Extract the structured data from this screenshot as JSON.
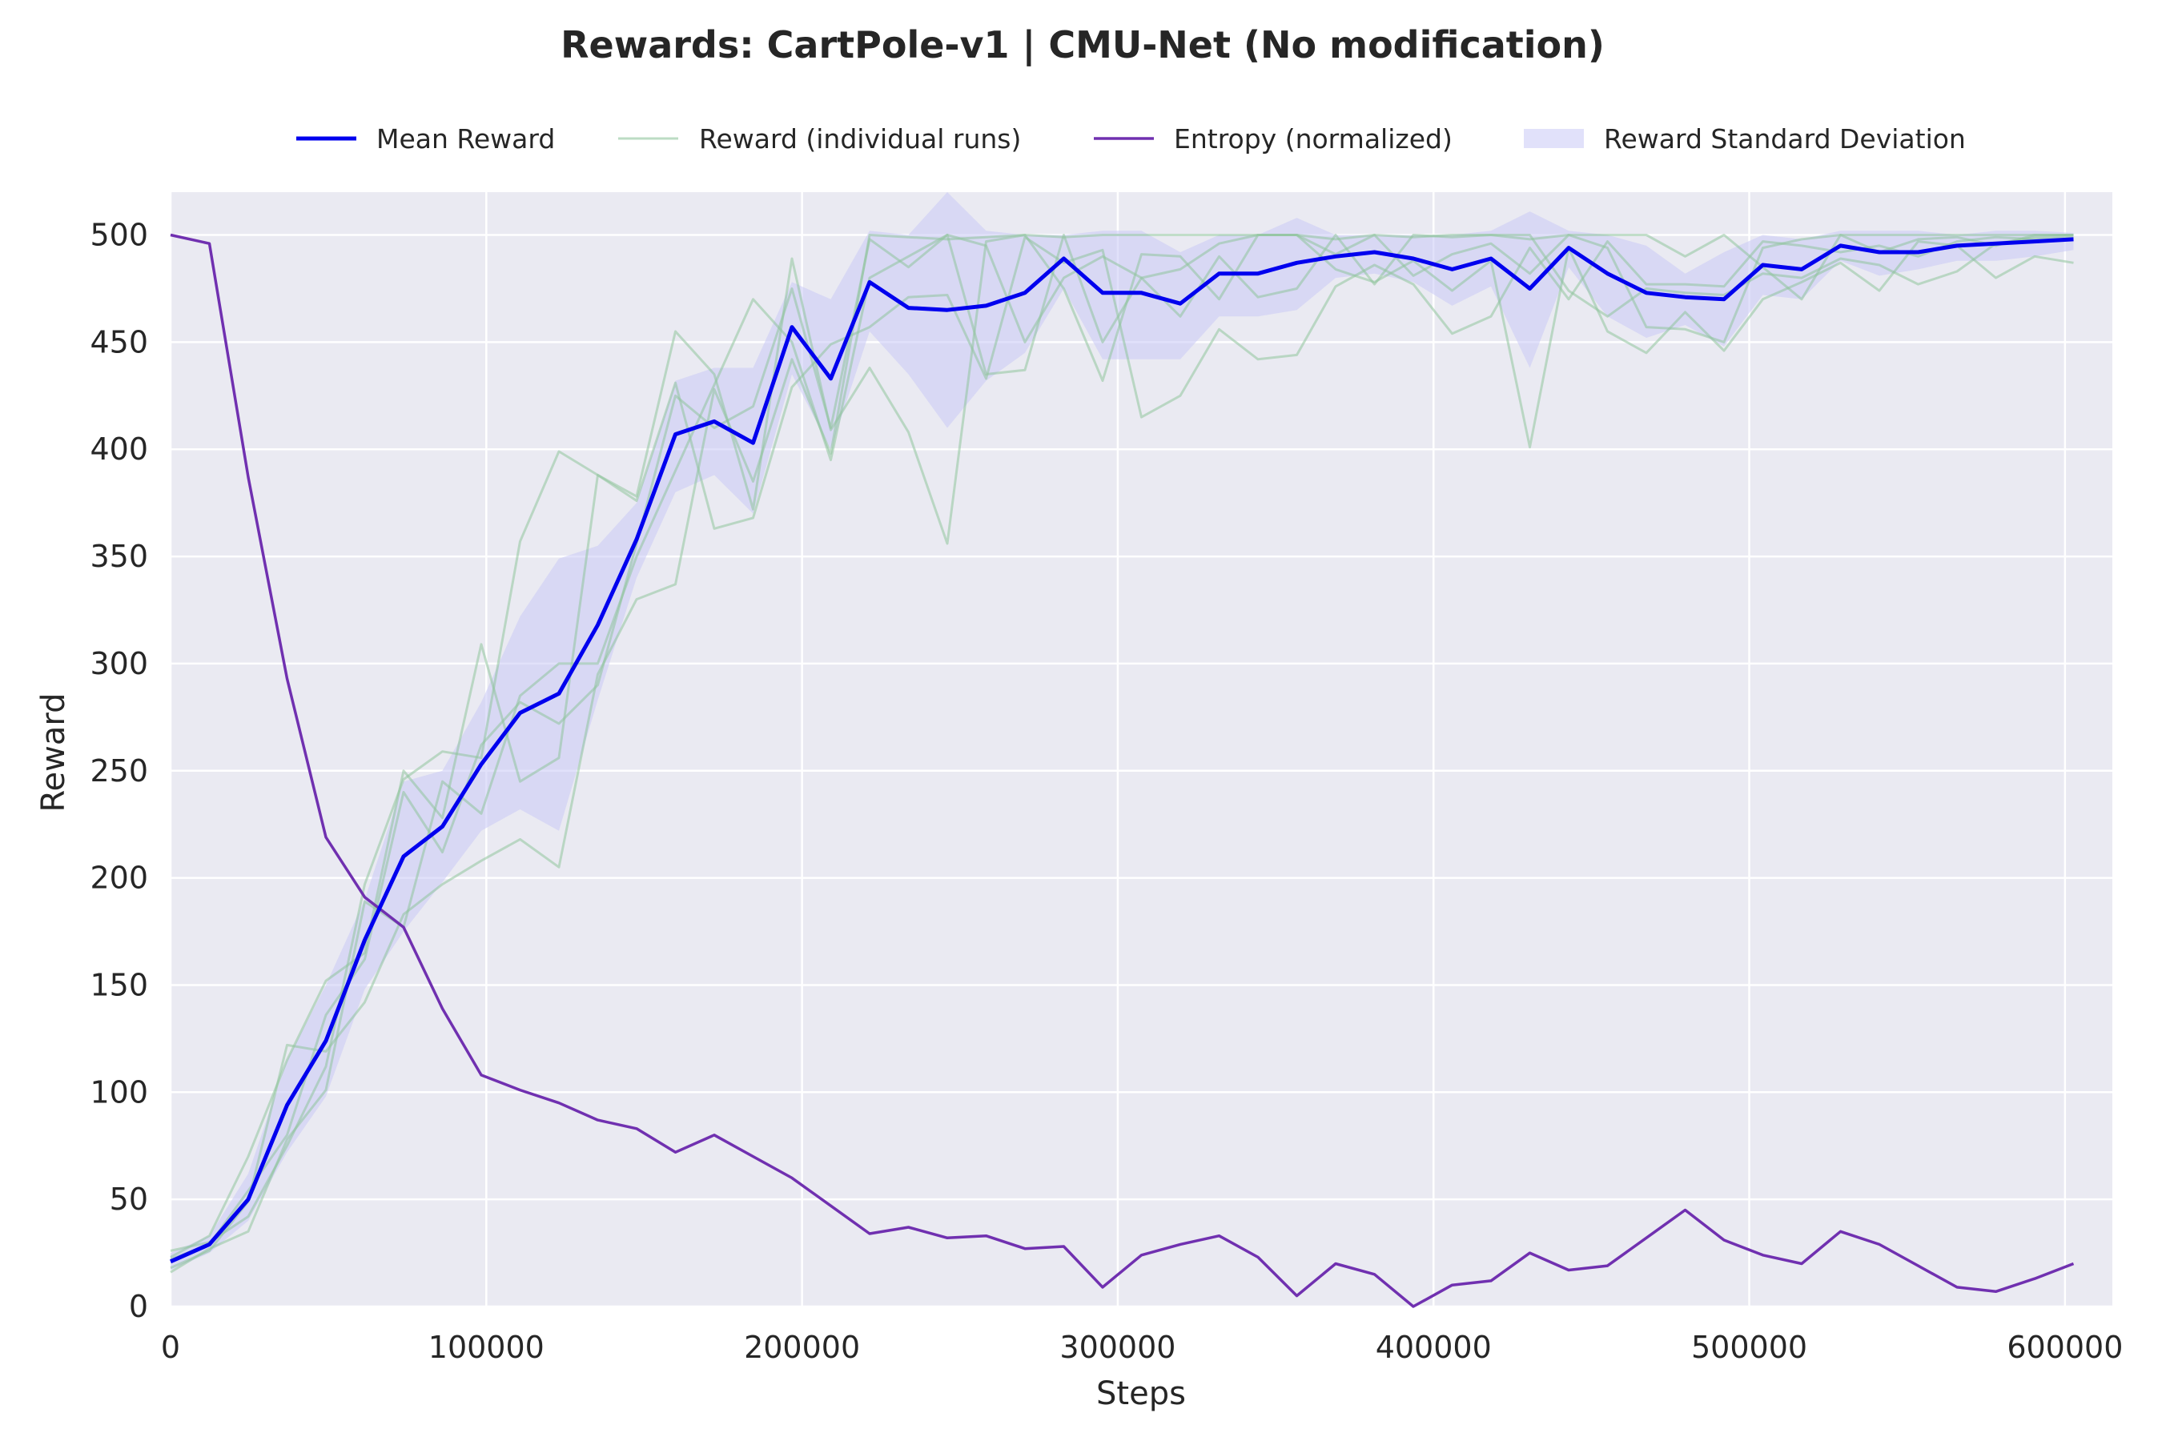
{
  "chart_data": {
    "type": "line",
    "title": "Rewards: CartPole-v1 | CMU-Net (No modification)",
    "xlabel": "Steps",
    "ylabel": "Reward",
    "xlim": [
      0,
      615000
    ],
    "ylim": [
      0,
      520
    ],
    "xticks": [
      0,
      100000,
      200000,
      300000,
      400000,
      500000,
      600000
    ],
    "xtick_labels": [
      "0",
      "100000",
      "200000",
      "300000",
      "400000",
      "500000",
      "600000"
    ],
    "yticks": [
      0,
      50,
      100,
      150,
      200,
      250,
      300,
      350,
      400,
      450,
      500
    ],
    "ytick_labels": [
      "0",
      "50",
      "100",
      "150",
      "200",
      "250",
      "300",
      "350",
      "400",
      "450",
      "500"
    ],
    "grid": true,
    "legend_position": "top-center",
    "legend": [
      {
        "label": "Mean Reward",
        "kind": "line",
        "color": "#0000ee"
      },
      {
        "label": "Reward (individual runs)",
        "kind": "line",
        "color": "#8fc49c"
      },
      {
        "label": "Entropy (normalized)",
        "kind": "line",
        "color": "#7030b0"
      },
      {
        "label": "Reward Standard Deviation",
        "kind": "patch",
        "color": "#c9c9f5"
      }
    ],
    "x": [
      0,
      12300,
      24600,
      36900,
      49200,
      61500,
      73800,
      86100,
      98400,
      110700,
      123000,
      135300,
      147600,
      159900,
      172200,
      184500,
      196800,
      209100,
      221400,
      233700,
      246000,
      258300,
      270600,
      282900,
      295200,
      307500,
      319800,
      332100,
      344400,
      356700,
      369000,
      381300,
      393600,
      405900,
      418200,
      430500,
      442800,
      455100,
      467400,
      479700,
      492000,
      504300,
      516600,
      528900,
      541200,
      553500,
      565800,
      578100,
      590400,
      602700
    ],
    "series": [
      {
        "name": "Mean Reward",
        "color": "#0000ee",
        "values": [
          21,
          29,
          50,
          94,
          124,
          171,
          210,
          224,
          253,
          277,
          286,
          318,
          358,
          407,
          413,
          403,
          457,
          433,
          478,
          466,
          465,
          467,
          473,
          489,
          473,
          473,
          468,
          482,
          482,
          487,
          490,
          492,
          489,
          484,
          489,
          475,
          494,
          482,
          473,
          471,
          470,
          486,
          484,
          495,
          492,
          492,
          495,
          496,
          497,
          498
        ]
      },
      {
        "name": "Reward (individual runs)",
        "color": "#8fc49c",
        "runs": [
          [
            18,
            26,
            49,
            122,
            119,
            142,
            183,
            197,
            208,
            218,
            205,
            295,
            330,
            337,
            428,
            385,
            442,
            398,
            500,
            499,
            498,
            499,
            500,
            499,
            500,
            500,
            500,
            500,
            500,
            500,
            498,
            500,
            499,
            500,
            500,
            498,
            500,
            500,
            500,
            490,
            500,
            485,
            470,
            500,
            500,
            500,
            500,
            500,
            500,
            500
          ],
          [
            23,
            33,
            70,
            115,
            152,
            165,
            250,
            228,
            309,
            245,
            256,
            388,
            378,
            455,
            435,
            372,
            489,
            409,
            438,
            408,
            356,
            497,
            500,
            475,
            432,
            491,
            490,
            470,
            500,
            500,
            484,
            478,
            488,
            474,
            488,
            401,
            494,
            455,
            445,
            464,
            446,
            470,
            478,
            487,
            474,
            497,
            495,
            480,
            490,
            487
          ],
          [
            26,
            30,
            42,
            75,
            112,
            197,
            246,
            259,
            256,
            357,
            399,
            388,
            376,
            431,
            363,
            368,
            429,
            449,
            457,
            471,
            472,
            433,
            499,
            487,
            493,
            415,
            425,
            456,
            442,
            444,
            476,
            486,
            477,
            454,
            462,
            494,
            470,
            497,
            477,
            477,
            476,
            497,
            495,
            492,
            495,
            490,
            497,
            499,
            498,
            499
          ],
          [
            16,
            27,
            35,
            78,
            101,
            189,
            177,
            245,
            230,
            285,
            300,
            300,
            350,
            390,
            430,
            470,
            450,
            395,
            480,
            490,
            500,
            495,
            450,
            480,
            490,
            480,
            462,
            490,
            471,
            475,
            500,
            477,
            500,
            499,
            500,
            500,
            474,
            462,
            475,
            473,
            472,
            482,
            480,
            489,
            486,
            477,
            483,
            496,
            499,
            500
          ],
          [
            22,
            29,
            54,
            80,
            136,
            162,
            240,
            212,
            262,
            282,
            272,
            290,
            356,
            425,
            410,
            420,
            475,
            410,
            498,
            485,
            500,
            435,
            437,
            500,
            450,
            480,
            484,
            496,
            500,
            500,
            491,
            500,
            481,
            491,
            496,
            482,
            500,
            494,
            457,
            456,
            450,
            494,
            498,
            500,
            492,
            498,
            499,
            495,
            500,
            500
          ]
        ]
      },
      {
        "name": "Entropy (normalized)",
        "color": "#7030b0",
        "values": [
          500,
          496,
          387,
          293,
          219,
          191,
          177,
          139,
          108,
          101,
          95,
          87,
          83,
          72,
          80,
          70,
          60,
          47,
          34,
          37,
          32,
          33,
          27,
          28,
          9,
          24,
          29,
          33,
          23,
          5,
          20,
          15,
          0,
          10,
          12,
          25,
          17,
          19,
          32,
          45,
          31,
          24,
          20,
          35,
          29,
          19,
          9,
          7,
          13,
          20
        ]
      },
      {
        "name": "Reward Standard Deviation",
        "color": "#c9c9f5",
        "upper": [
          25,
          33,
          62,
          115,
          150,
          190,
          245,
          250,
          282,
          322,
          349,
          355,
          375,
          432,
          438,
          438,
          478,
          470,
          502,
          500,
          520,
          502,
          500,
          500,
          502,
          502,
          492,
          500,
          500,
          508,
          500,
          500,
          500,
          500,
          502,
          511,
          502,
          500,
          495,
          482,
          492,
          500,
          498,
          502,
          502,
          502,
          500,
          502,
          502,
          501
        ],
        "lower": [
          17,
          25,
          40,
          72,
          98,
          148,
          175,
          198,
          222,
          232,
          222,
          283,
          340,
          380,
          388,
          370,
          435,
          400,
          455,
          435,
          410,
          432,
          445,
          475,
          442,
          442,
          442,
          462,
          462,
          465,
          480,
          482,
          478,
          467,
          476,
          438,
          485,
          462,
          452,
          458,
          448,
          472,
          470,
          488,
          481,
          484,
          488,
          488,
          490,
          493
        ]
      }
    ]
  }
}
